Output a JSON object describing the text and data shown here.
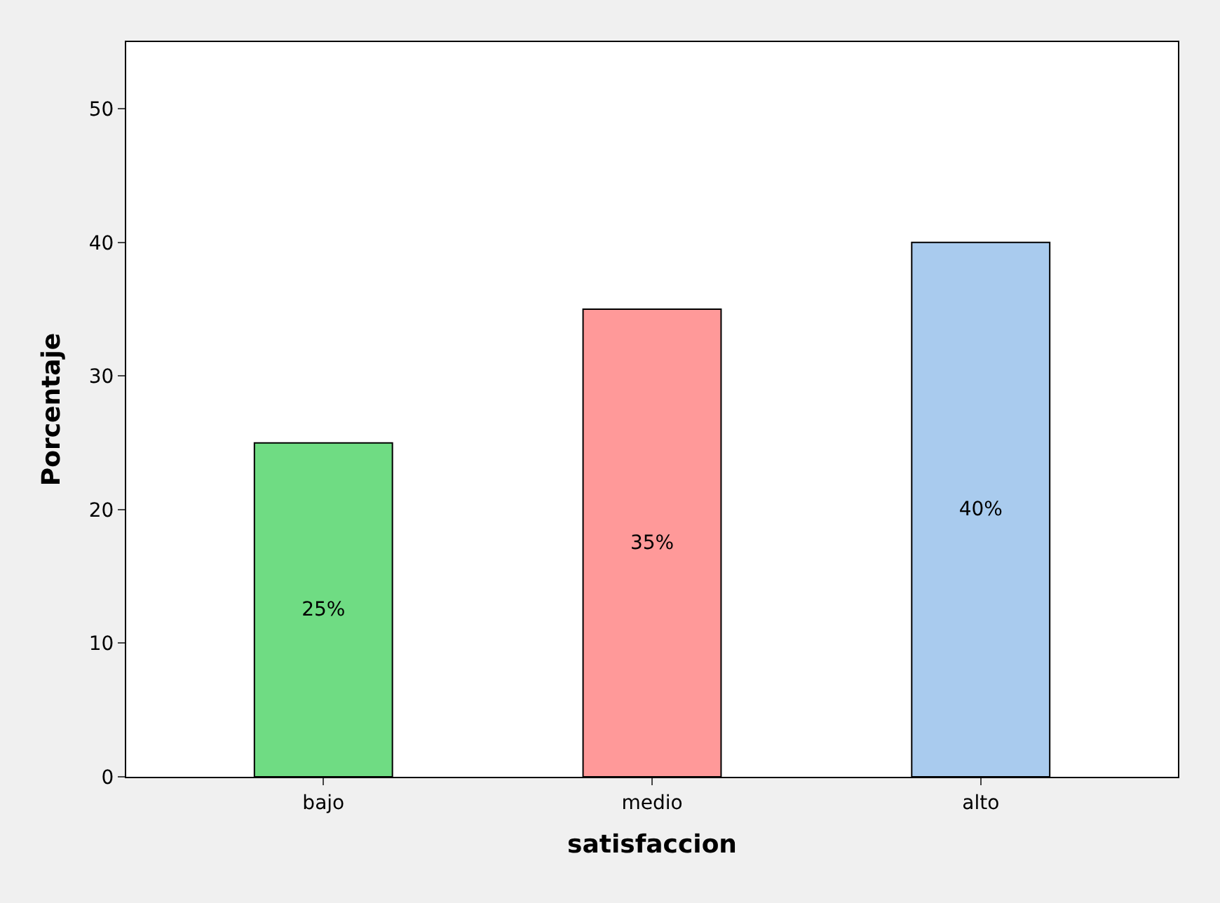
{
  "chart_data": {
    "type": "bar",
    "xlabel": "satisfaccion",
    "ylabel": "Porcentaje",
    "categories": [
      "bajo",
      "medio",
      "alto"
    ],
    "values": [
      25,
      35,
      40
    ],
    "colors": [
      "#6fdc83",
      "#ff9999",
      "#a9cbee"
    ],
    "value_labels": [
      "25%",
      "35%",
      "40%"
    ],
    "ylim": [
      0,
      55
    ],
    "yticks": [
      0,
      10,
      20,
      30,
      40,
      50
    ],
    "legend": false
  }
}
